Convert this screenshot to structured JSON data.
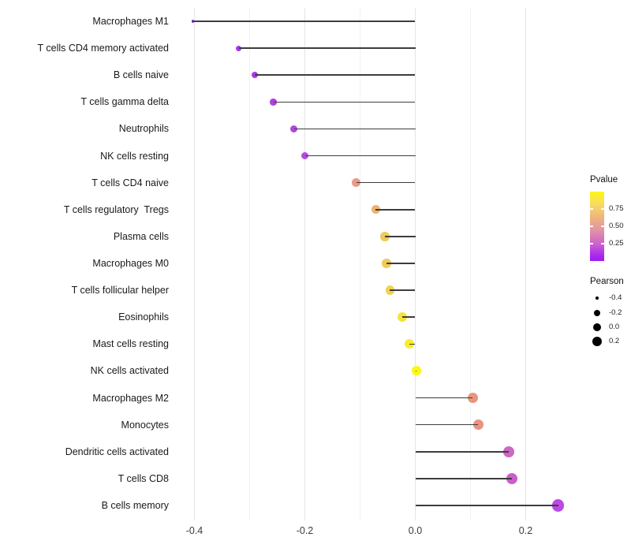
{
  "chart_data": {
    "type": "scatter",
    "variant": "lollipop",
    "orientation": "horizontal",
    "title": "",
    "xlabel": "",
    "ylabel": "",
    "grid": "on",
    "x_axis": {
      "tick_labels": [
        "-0.4",
        "-0.2",
        "0.0",
        "0.2"
      ],
      "tick_values": [
        -0.4,
        -0.2,
        0.0,
        0.2
      ],
      "minor_tick_values": [
        -0.3,
        -0.1,
        0.1
      ],
      "range": [
        -0.435,
        0.292
      ]
    },
    "legend": {
      "position": "right",
      "color": {
        "title": "Pvalue",
        "tick_labels": [
          "0.75",
          "0.50",
          "0.25"
        ],
        "tick_values": [
          0.75,
          0.5,
          0.25
        ],
        "scale_min": 0,
        "scale_max": 1,
        "top_color": "#fcf613",
        "bottom_color": "#9d1df2"
      },
      "size": {
        "title": "Pearson",
        "labels": [
          "-0.4",
          "-0.2",
          "0.0",
          "0.2"
        ],
        "values": [
          -0.4,
          -0.2,
          0.0,
          0.2
        ],
        "radii": [
          1.8,
          4.3,
          5.3,
          6.1
        ]
      }
    },
    "points": [
      {
        "label": "Macrophages M1",
        "pearson": -0.403,
        "pvalue_approx": 0.05,
        "color": "#9330d6",
        "radius": 1.8
      },
      {
        "label": "T cells CD4 memory activated",
        "pearson": -0.32,
        "pvalue_approx": 0.1,
        "color": "#a93be8",
        "radius": 3.6
      },
      {
        "label": "B cells naive",
        "pearson": -0.291,
        "pvalue_approx": 0.11,
        "color": "#aa3de6",
        "radius": 3.9
      },
      {
        "label": "T cells gamma delta",
        "pearson": -0.257,
        "pvalue_approx": 0.13,
        "color": "#ac41e4",
        "radius": 4.2
      },
      {
        "label": "Neutrophils",
        "pearson": -0.22,
        "pvalue_approx": 0.15,
        "color": "#af46e1",
        "radius": 4.5
      },
      {
        "label": "NK cells resting",
        "pearson": -0.2,
        "pvalue_approx": 0.17,
        "color": "#b34cde",
        "radius": 4.7
      },
      {
        "label": "T cells CD4 naive",
        "pearson": -0.107,
        "pvalue_approx": 0.5,
        "color": "#e89b86",
        "radius": 5.4
      },
      {
        "label": "T cells regulatory  Tregs",
        "pearson": -0.072,
        "pvalue_approx": 0.65,
        "color": "#edb369",
        "radius": 5.6
      },
      {
        "label": "Plasma cells",
        "pearson": -0.055,
        "pvalue_approx": 0.72,
        "color": "#f0ca5e",
        "radius": 5.7
      },
      {
        "label": "Macrophages M0",
        "pearson": -0.052,
        "pvalue_approx": 0.73,
        "color": "#f0cb5a",
        "radius": 5.7
      },
      {
        "label": "T cells follicular helper",
        "pearson": -0.046,
        "pvalue_approx": 0.77,
        "color": "#f2d250",
        "radius": 5.8
      },
      {
        "label": "Eosinophils",
        "pearson": -0.024,
        "pvalue_approx": 0.85,
        "color": "#f6e23c",
        "radius": 5.9
      },
      {
        "label": "Mast cells resting",
        "pearson": -0.011,
        "pvalue_approx": 0.9,
        "color": "#f9ec2b",
        "radius": 6.0
      },
      {
        "label": "NK cells activated",
        "pearson": 0.002,
        "pvalue_approx": 0.97,
        "color": "#fcf614",
        "radius": 6.0
      },
      {
        "label": "Macrophages M2",
        "pearson": 0.104,
        "pvalue_approx": 0.53,
        "color": "#e8957e",
        "radius": 6.4
      },
      {
        "label": "Monocytes",
        "pearson": 0.114,
        "pvalue_approx": 0.52,
        "color": "#e8937f",
        "radius": 6.5
      },
      {
        "label": "Dendritic cells activated",
        "pearson": 0.169,
        "pvalue_approx": 0.33,
        "color": "#cc67c4",
        "radius": 6.9
      },
      {
        "label": "T cells CD8",
        "pearson": 0.175,
        "pvalue_approx": 0.3,
        "color": "#c95fc8",
        "radius": 7.0
      },
      {
        "label": "B cells memory",
        "pearson": 0.259,
        "pvalue_approx": 0.17,
        "color": "#bc49e3",
        "radius": 7.6
      }
    ]
  }
}
